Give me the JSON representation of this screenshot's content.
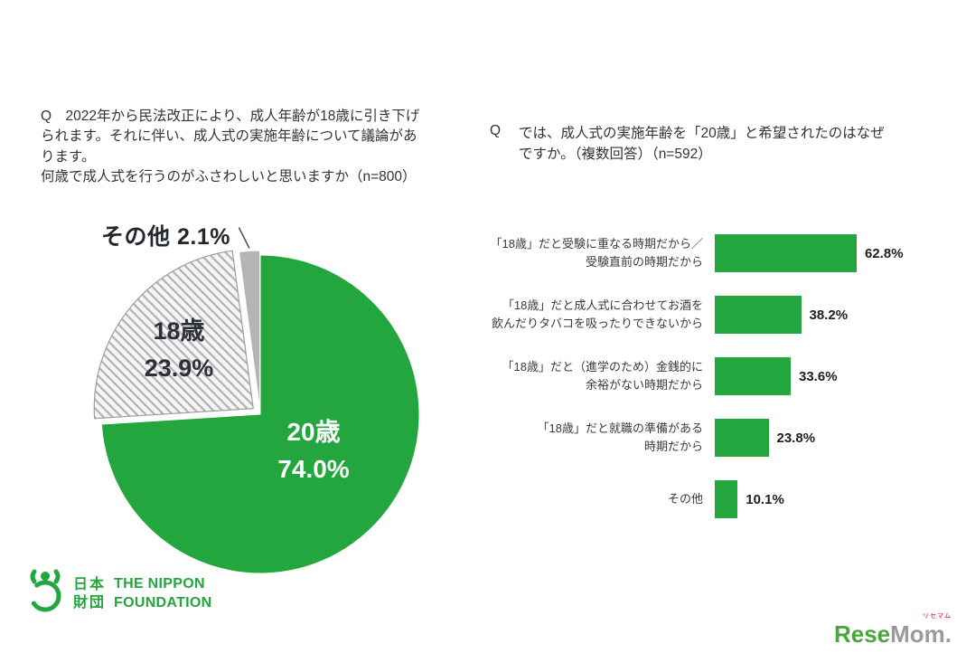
{
  "colors": {
    "green": "#22A63D",
    "hatch_bg": "#f6f6f6",
    "hatch_line": "#b2b2b2",
    "slice_gray": "#b5b5b5",
    "text_dark": "#333333",
    "leader_line": "#4a4a4a"
  },
  "chart_data": [
    {
      "type": "pie",
      "question": "Q　2022年から民法改正により、成人年齢が18歳に引き下げ\nられます。それに伴い、成人式の実施年齢について議論があ\nります。\n何歳で成人式を行うのがふさわしいと思いますか（n=800）",
      "start_angle": "top",
      "direction": "clockwise",
      "slices": [
        {
          "label": "20歳",
          "value": 74.0,
          "value_label": "74.0%",
          "fill": "solid",
          "color": "#22A63D",
          "stroke": "#ffffff",
          "stroke_width": 1,
          "explode": 0
        },
        {
          "label": "18歳",
          "value": 23.9,
          "value_label": "23.9%",
          "fill": "hatch",
          "color": "#f6f6f6",
          "stroke": "#9f9f9f",
          "stroke_width": 1.2,
          "explode": 10
        },
        {
          "label": "その他",
          "value": 2.1,
          "value_label": "2.1%",
          "fill": "solid",
          "color": "#b5b5b5",
          "stroke": "#ffffff",
          "stroke_width": 1,
          "explode": 5
        }
      ]
    },
    {
      "type": "bar",
      "orientation": "horizontal",
      "question_q": "Q",
      "question_text": "では、成人式の実施年齢を「20歳」と希望されたのはなぜ\nですか。（複数回答）（n=592）",
      "categories": [
        "「18歳」だと受験に重なる時期だから／\n受験直前の時期だから",
        "「18歳」だと成人式に合わせてお酒を\n飲んだりタバコを吸ったりできないから",
        "「18歳」だと（進学のため）金銭的に\n余裕がない時期だから",
        "「18歳」だと就職の準備がある\n時期だから",
        "その他"
      ],
      "values": [
        62.8,
        38.2,
        33.6,
        23.8,
        10.1
      ],
      "value_labels": [
        "62.8%",
        "38.2%",
        "33.6%",
        "23.8%",
        "10.1%"
      ],
      "xlim": [
        0,
        70
      ],
      "bar_color": "#22A63D",
      "legend": "none",
      "grid": "off"
    }
  ],
  "footer": {
    "nippon_foundation": {
      "jp": "日本\n財団",
      "en": "THE NIPPON\nFOUNDATION"
    },
    "resemom": {
      "green": "Rese",
      "gray": "Mom.",
      "kana": "リセマム"
    }
  }
}
